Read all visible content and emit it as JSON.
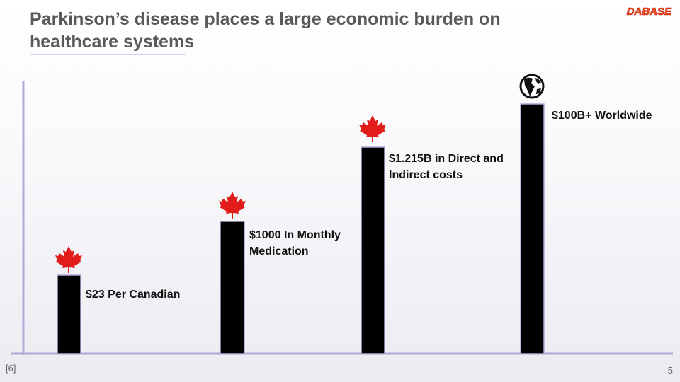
{
  "header": {
    "title_lines": [
      "Parkinson’s disease places a large economic burden on",
      "healthcare systems"
    ],
    "logo": "DABASE"
  },
  "bars": [
    {
      "label_lines": [
        "$23 Per Canadian"
      ]
    },
    {
      "label_lines": [
        "$1000 In Monthly",
        "Medication"
      ]
    },
    {
      "label_lines": [
        "$1.215B in Direct and",
        "Indirect costs"
      ]
    },
    {
      "label_lines": [
        "$100B+ Worldwide"
      ]
    }
  ],
  "footer": {
    "citation": "[6]",
    "page_number": "5"
  }
}
